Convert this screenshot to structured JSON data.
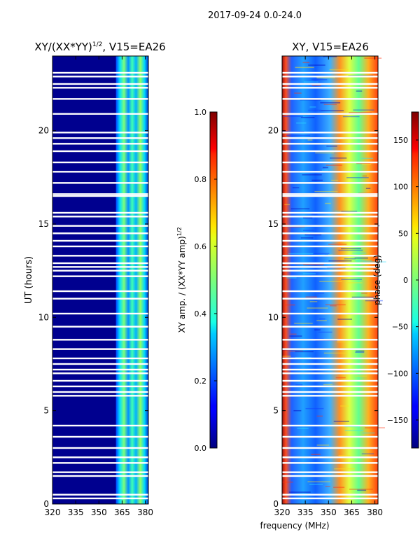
{
  "figure": {
    "suptitle": "2017-09-24 0.0-24.0",
    "shared_xlabel": "frequency (MHz)"
  },
  "chart_data": [
    {
      "type": "heatmap",
      "title": "XY/(XX*YY)",
      "title_sup": "1/2",
      "title_tail": ", V15=EA26",
      "xlabel": "",
      "ylabel": "UT (hours)",
      "xlim": [
        320,
        382
      ],
      "ylim": [
        0,
        24
      ],
      "x_ticks": [
        320,
        335,
        350,
        365,
        380
      ],
      "y_ticks": [
        0,
        5,
        10,
        15,
        20
      ],
      "colormap": "jet",
      "colorbar": {
        "label": "XY amp. / (XX*YY amp)",
        "label_sup": "1/2",
        "range": [
          0.0,
          1.0
        ],
        "ticks": [
          "0.0",
          "0.2",
          "0.4",
          "0.6",
          "0.8",
          "1.0"
        ],
        "tick_values": [
          0.0,
          0.2,
          0.4,
          0.6,
          0.8,
          1.0
        ]
      },
      "active_band_mhz": [
        361,
        382
      ],
      "flagged_ut_hours": [
        0.3,
        0.5,
        1.5,
        1.7,
        2.2,
        2.5,
        3.0,
        3.6,
        4.2,
        5.8,
        6.0,
        6.3,
        6.6,
        7.0,
        7.2,
        7.5,
        7.8,
        8.3,
        8.8,
        9.5,
        10.2,
        11.0,
        11.4,
        12.2,
        12.5,
        12.7,
        12.9,
        13.3,
        13.8,
        14.1,
        14.5,
        14.9,
        15.4,
        15.6,
        16.5,
        16.6,
        17.2,
        17.8,
        18.3,
        18.9,
        19.3,
        19.6,
        19.9,
        20.9,
        21.7,
        22.3,
        22.5,
        22.9,
        23.1
      ]
    },
    {
      "type": "heatmap",
      "title": "XY, V15=EA26",
      "xlabel": "frequency (MHz)",
      "ylabel": "",
      "xlim": [
        320,
        382
      ],
      "ylim": [
        0,
        24
      ],
      "x_ticks": [
        320,
        335,
        350,
        365,
        380
      ],
      "y_ticks": [
        0,
        5,
        10,
        15,
        20
      ],
      "colormap": "jet",
      "colorbar": {
        "label": "phase (deg)",
        "range": [
          -180,
          180
        ],
        "ticks": [
          "150",
          "100",
          "50",
          "0",
          "−50",
          "−100",
          "−150"
        ],
        "tick_values": [
          150,
          100,
          50,
          0,
          -50,
          -100,
          -150
        ]
      },
      "flagged_ut_hours": [
        0.3,
        0.5,
        1.5,
        1.7,
        2.2,
        2.5,
        3.0,
        3.6,
        4.2,
        5.8,
        6.0,
        6.3,
        6.6,
        7.0,
        7.2,
        7.5,
        7.8,
        8.3,
        8.8,
        9.5,
        10.2,
        11.0,
        11.4,
        12.2,
        12.5,
        12.7,
        12.9,
        13.3,
        13.8,
        14.1,
        14.5,
        14.9,
        15.4,
        15.6,
        16.5,
        16.6,
        17.2,
        17.8,
        18.3,
        18.9,
        19.3,
        19.6,
        19.9,
        20.9,
        21.7,
        22.3,
        22.5,
        22.9,
        23.1
      ]
    }
  ]
}
